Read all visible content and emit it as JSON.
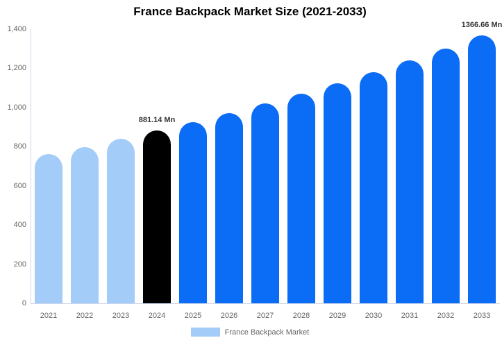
{
  "title": "France Backpack Market Size (2021-2033)",
  "colors": {
    "light": "#a3ccf9",
    "blue": "#0b6cf5",
    "black": "#000000",
    "axis": "#ccd6eb",
    "tick_text": "#666666",
    "data_label_text": "#333333"
  },
  "legend": {
    "label": "France Backpack Market",
    "swatch_color": "#a3ccf9"
  },
  "chart_data": {
    "type": "bar",
    "title": "France Backpack Market Size (2021-2033)",
    "xlabel": "",
    "ylabel": "",
    "categories": [
      "2021",
      "2022",
      "2023",
      "2024",
      "2025",
      "2026",
      "2027",
      "2028",
      "2029",
      "2030",
      "2031",
      "2032",
      "2033"
    ],
    "values": [
      761.16,
      799.22,
      839.18,
      881.14,
      925.2,
      971.46,
      1020.03,
      1071.03,
      1124.58,
      1180.81,
      1239.85,
      1301.84,
      1366.66
    ],
    "bar_colors": [
      "light",
      "light",
      "light",
      "black",
      "blue",
      "blue",
      "blue",
      "blue",
      "blue",
      "blue",
      "blue",
      "blue",
      "blue"
    ],
    "data_labels": [
      {
        "index": 3,
        "text": "881.14 Mn"
      },
      {
        "index": 12,
        "text": "1366.66 Mn"
      }
    ],
    "ylim": [
      0,
      1400
    ],
    "yticks": [
      {
        "value": 0,
        "label": "0"
      },
      {
        "value": 200,
        "label": "200"
      },
      {
        "value": 400,
        "label": "400"
      },
      {
        "value": 600,
        "label": "600"
      },
      {
        "value": 800,
        "label": "800"
      },
      {
        "value": 1000,
        "label": "1,000"
      },
      {
        "value": 1200,
        "label": "1,200"
      },
      {
        "value": 1400,
        "label": "1,400"
      }
    ],
    "grid": false,
    "legend_position": "bottom",
    "series_name": "France Backpack Market"
  }
}
